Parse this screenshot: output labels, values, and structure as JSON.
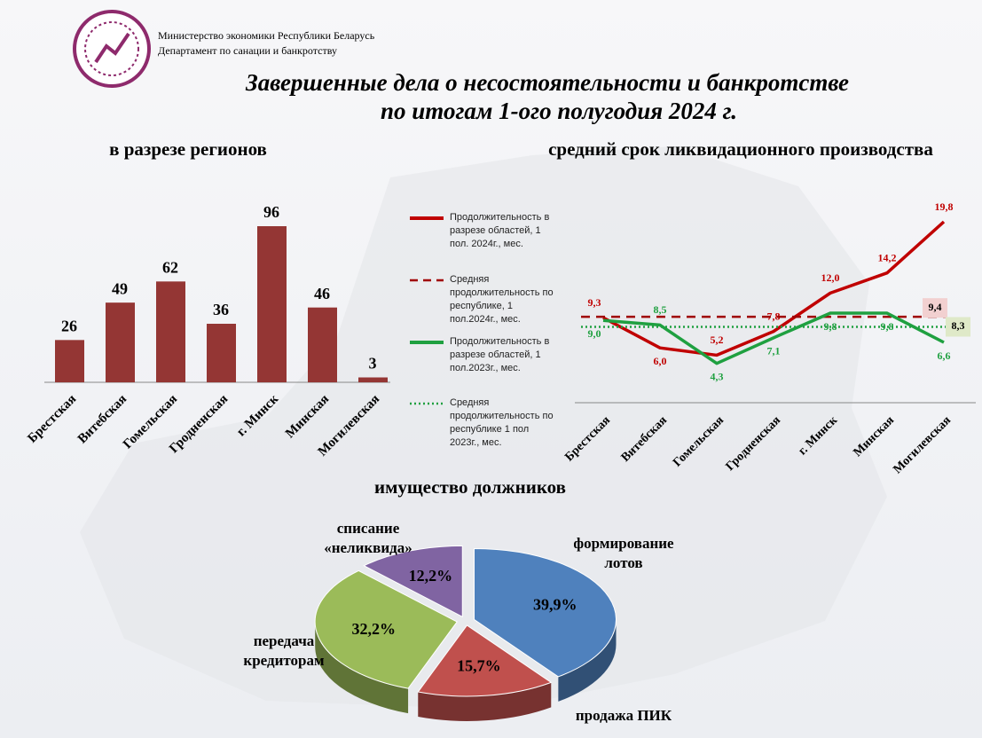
{
  "header": {
    "ministry": "Министерство экономики Республики Беларусь",
    "department": "Департамент по санации и банкротству",
    "title_line1": "Завершенные дела о несостоятельности и банкротстве",
    "title_line2": "по итогам 1-ого полугодия 2024 г."
  },
  "chart_data": [
    {
      "type": "bar",
      "title": "в разрезе регионов",
      "categories": [
        "Брестская",
        "Витебская",
        "Гомельская",
        "Гродненская",
        "г. Минск",
        "Минская",
        "Могилевская"
      ],
      "values": [
        26,
        49,
        62,
        36,
        96,
        46,
        3
      ],
      "color": "#943634"
    },
    {
      "type": "line",
      "title": "средний срок ликвидационного производства",
      "categories": [
        "Брестская",
        "Витебская",
        "Гомельская",
        "Гродненская",
        "г. Минск",
        "Минская",
        "Могилевская"
      ],
      "series": [
        {
          "name": "Продолжительность в разрезе областей, 1 пол. 2024г., мес.",
          "color": "#c00000",
          "style": "solid",
          "values": [
            9.3,
            6.0,
            5.2,
            7.8,
            12.0,
            14.2,
            19.8
          ],
          "value_labels": [
            "9,3",
            "6,0",
            "5,2",
            "7,8",
            "12,0",
            "14,2",
            "19,8"
          ]
        },
        {
          "name": "Средняя продолжительность по республике, 1 пол.2024г., мес.",
          "color": "#a00000",
          "style": "dashed",
          "value": 9.4,
          "value_label": "9,4",
          "label_bg": "#f2d0d0"
        },
        {
          "name": "Продолжительность в разрезе областей, 1 пол.2023г., мес.",
          "color": "#1fa040",
          "style": "solid",
          "values": [
            9.0,
            8.5,
            4.3,
            7.1,
            9.8,
            9.8,
            6.6
          ],
          "value_labels": [
            "9,0",
            "8,5",
            "4,3",
            "7,1",
            "9,8",
            "9,8",
            "6,6"
          ]
        },
        {
          "name": "Средняя продолжительность по республике 1 пол 2023г., мес.",
          "color": "#1fa040",
          "style": "dotted",
          "value": 8.3,
          "value_label": "8,3",
          "label_bg": "#dfe9c8"
        }
      ]
    },
    {
      "type": "pie",
      "title": "имущество должников",
      "categories": [
        "формирование лотов",
        "продажа ПИК",
        "передача кредиторам",
        "списание «неликвида»"
      ],
      "values": [
        39.9,
        15.7,
        32.2,
        12.2
      ],
      "value_labels": [
        "39,9%",
        "15,7%",
        "32,2%",
        "12,2%"
      ],
      "colors": [
        "#4f81bd",
        "#c0504d",
        "#9bbb59",
        "#8064a2"
      ]
    }
  ]
}
